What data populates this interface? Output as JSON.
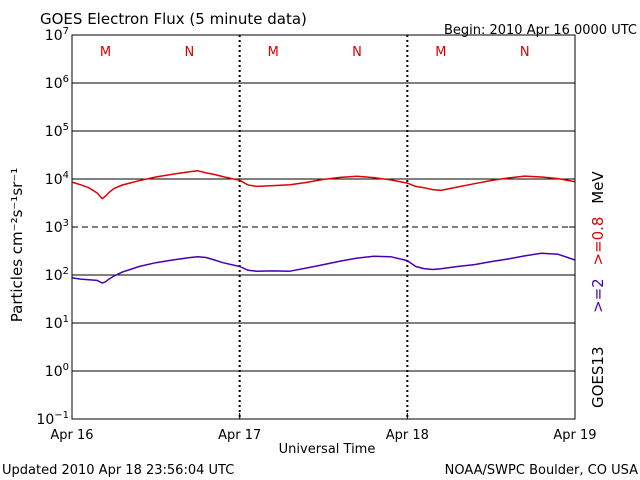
{
  "chart_data": {
    "type": "line",
    "title": "GOES Electron Flux (5 minute data)",
    "begin_label": "Begin: 2010 Apr 16 0000 UTC",
    "xlabel": "Universal Time",
    "ylabel": "Particles cm⁻²s⁻¹sr⁻¹",
    "x_unit": "days since 2010 Apr 16 00:00 UTC",
    "xlim": [
      0,
      3
    ],
    "y_scale": "log",
    "ylim_exponent": [
      -1,
      7
    ],
    "x_tick_labels": [
      {
        "x": 0,
        "label": "Apr 16"
      },
      {
        "x": 1,
        "label": "Apr 17"
      },
      {
        "x": 2,
        "label": "Apr 18"
      },
      {
        "x": 3,
        "label": "Apr 19"
      }
    ],
    "y_tick_labels": [
      {
        "exp": 7,
        "base": "10",
        "sup": "7"
      },
      {
        "exp": 6,
        "base": "10",
        "sup": "6"
      },
      {
        "exp": 5,
        "base": "10",
        "sup": "5"
      },
      {
        "exp": 4,
        "base": "10",
        "sup": "4"
      },
      {
        "exp": 3,
        "base": "10",
        "sup": "3"
      },
      {
        "exp": 2,
        "base": "10",
        "sup": "2"
      },
      {
        "exp": 1,
        "base": "10",
        "sup": "1"
      },
      {
        "exp": 0,
        "base": "10",
        "sup": "0"
      },
      {
        "exp": -1,
        "base": "10",
        "sup": "−1"
      }
    ],
    "solid_gridlines_exp": [
      6,
      5,
      4,
      2,
      1,
      0
    ],
    "dashed_gridlines_exp": [
      3
    ],
    "noon_midnight_markers": [
      {
        "x": 0.2,
        "label": "M"
      },
      {
        "x": 0.7,
        "label": "N"
      },
      {
        "x": 1.2,
        "label": "M"
      },
      {
        "x": 1.7,
        "label": "N"
      },
      {
        "x": 2.2,
        "label": "M"
      },
      {
        "x": 2.7,
        "label": "N"
      }
    ],
    "series": [
      {
        "name": ">=0.8 MeV",
        "color": "#e00000",
        "x": [
          0,
          0.05,
          0.1,
          0.15,
          0.18,
          0.2,
          0.22,
          0.25,
          0.3,
          0.4,
          0.5,
          0.6,
          0.7,
          0.75,
          0.8,
          0.85,
          0.9,
          1.0,
          1.05,
          1.1,
          1.2,
          1.3,
          1.4,
          1.5,
          1.6,
          1.7,
          1.8,
          1.9,
          2.0,
          2.05,
          2.1,
          2.15,
          2.2,
          2.3,
          2.4,
          2.5,
          2.6,
          2.7,
          2.8,
          2.9,
          3.0
        ],
        "values": [
          8600,
          7600,
          6600,
          5100,
          3900,
          4400,
          5200,
          6300,
          7500,
          9200,
          11000,
          12500,
          14200,
          14800,
          13400,
          12400,
          11200,
          9400,
          7500,
          7000,
          7300,
          7600,
          8500,
          9800,
          10800,
          11400,
          10700,
          9600,
          8200,
          7000,
          6600,
          6000,
          5800,
          6800,
          8000,
          9300,
          10500,
          11500,
          11000,
          10200,
          8800
        ]
      },
      {
        "name": ">=2 MeV",
        "color": "#4a00b0",
        "x": [
          0,
          0.05,
          0.1,
          0.15,
          0.18,
          0.2,
          0.22,
          0.25,
          0.3,
          0.4,
          0.5,
          0.6,
          0.7,
          0.75,
          0.8,
          0.85,
          0.9,
          1.0,
          1.05,
          1.1,
          1.2,
          1.3,
          1.4,
          1.5,
          1.6,
          1.7,
          1.8,
          1.9,
          2.0,
          2.05,
          2.1,
          2.15,
          2.2,
          2.3,
          2.4,
          2.5,
          2.6,
          2.7,
          2.8,
          2.9,
          3.0
        ],
        "values": [
          88,
          82,
          80,
          77,
          68,
          72,
          82,
          95,
          115,
          150,
          180,
          205,
          230,
          240,
          232,
          205,
          180,
          150,
          125,
          120,
          122,
          120,
          140,
          165,
          195,
          225,
          245,
          240,
          200,
          150,
          136,
          130,
          135,
          150,
          165,
          190,
          215,
          250,
          285,
          270,
          205
        ]
      }
    ],
    "legend": {
      "label1": ">=2",
      "label1_color": "#4a00b0",
      "label2": ">=0.8",
      "label2_color": "#e00000",
      "unit": "MeV",
      "satellite": "GOES13"
    },
    "footer_left": "Updated 2010 Apr 18 23:56:04 UTC",
    "footer_right": "NOAA/SWPC Boulder, CO USA",
    "marker_color": "#e00000"
  }
}
